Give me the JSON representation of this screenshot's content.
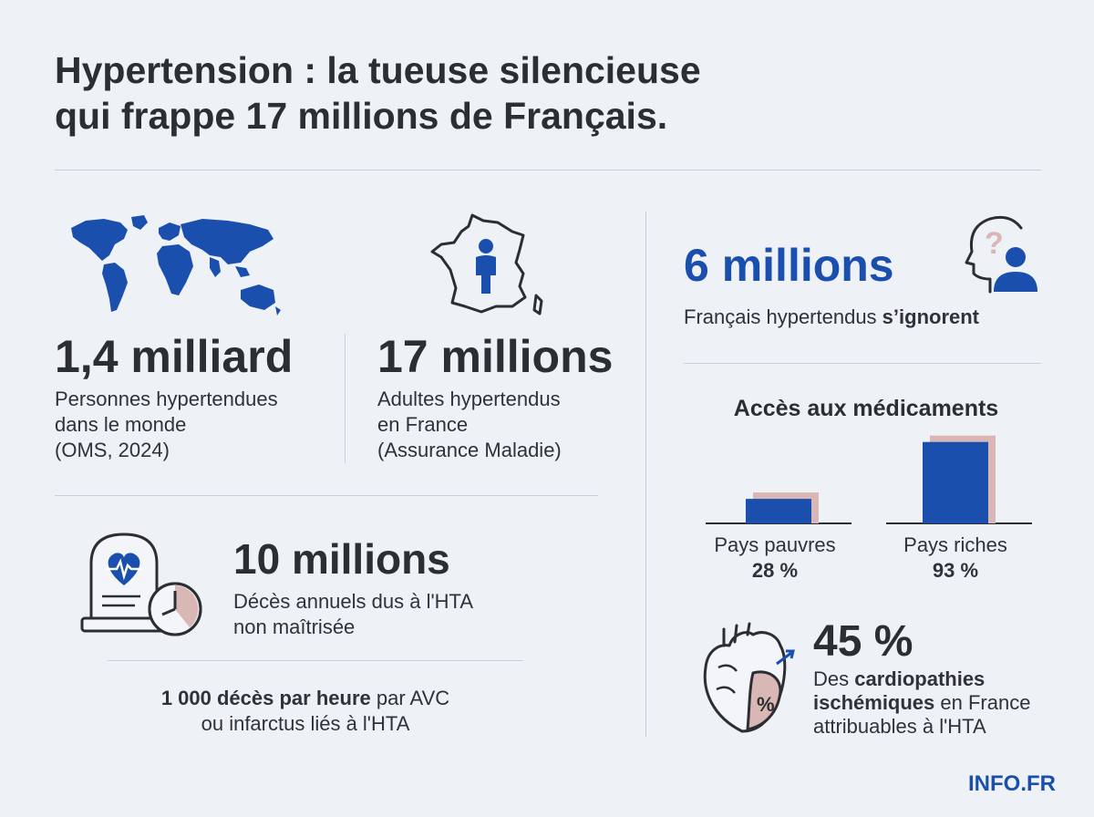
{
  "header": {
    "title_line1": "Hypertension : la tueuse silencieuse",
    "title_line2": "qui frappe 17 millions de Français."
  },
  "world": {
    "value": "1,4 milliard",
    "line1": "Personnes hypertendues",
    "line2": "dans le monde",
    "line3": "(OMS, 2024)"
  },
  "france": {
    "value": "17 millions",
    "line1": "Adultes hypertendus",
    "line2": "en France",
    "line3": "(Assurance Maladie)"
  },
  "deaths": {
    "value": "10 millions",
    "line1": "Décès annuels dus à l'HTA",
    "line2": "non maîtrisée",
    "hourly_bold": "1 000 décès par heure",
    "hourly_rest": " par AVC",
    "hourly_line2": "ou infarctus liés à l'HTA"
  },
  "unaware": {
    "value": "6 millions",
    "text": "Français hypertendus ",
    "bold": "s’ignorent",
    "question_mark": "?"
  },
  "access": {
    "title": "Accès aux médicaments",
    "poor_label": "Pays pauvres",
    "poor_value": "28 %",
    "rich_label": "Pays riches",
    "rich_value": "93 %"
  },
  "chart_data": {
    "type": "bar",
    "title": "Accès aux médicaments",
    "categories": [
      "Pays pauvres",
      "Pays riches"
    ],
    "values": [
      28,
      93
    ],
    "ylim": [
      0,
      100
    ],
    "colors": {
      "bar": "#1a4fae",
      "shadow": "#d8b7b4"
    }
  },
  "cardio": {
    "value": "45 %",
    "line1_pre": "Des ",
    "line1_bold": "cardiopathies",
    "line2_bold": "ischémiques",
    "line2_rest": " en France",
    "line3": "attribuables à l'HTA",
    "heart_badge": "%"
  },
  "brand": {
    "logo": "INFO.FR"
  },
  "colors": {
    "accent": "#1a4fae",
    "rose": "#d8b7b4",
    "text": "#2b2e33",
    "bg": "#eef1f6"
  }
}
